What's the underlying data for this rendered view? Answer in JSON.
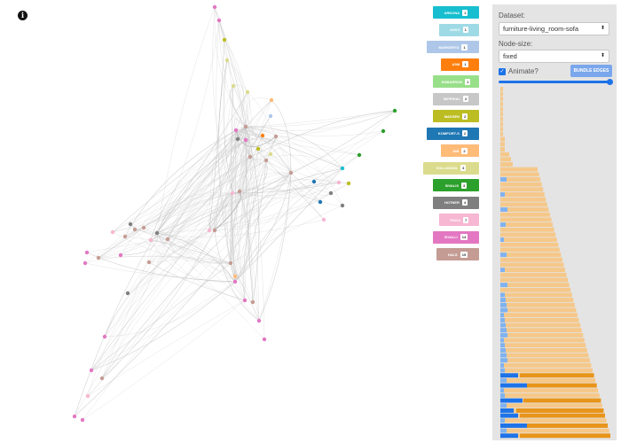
{
  "info_icon": "info-icon",
  "legend": [
    {
      "label": "ARKONA",
      "count": "1",
      "color": "#17becf"
    },
    {
      "label": "ASKO",
      "count": "1",
      "color": "#9edae5"
    },
    {
      "label": "MARKERYD",
      "count": "1",
      "color": "#aec7e8"
    },
    {
      "label": "ASM",
      "count": "1",
      "color": "#ff7f0e"
    },
    {
      "label": "EMBARRON",
      "count": "1",
      "color": "#98df8a"
    },
    {
      "label": "IMPERIAL",
      "count": "2",
      "color": "#c7c7c7"
    },
    {
      "label": "MADSEN",
      "count": "2",
      "color": "#bcbd22"
    },
    {
      "label": "KOMFORT-S",
      "count": "2",
      "color": "#1f77b4"
    },
    {
      "label": "NIB",
      "count": "2",
      "color": "#ffbb78"
    },
    {
      "label": "SOLLANDSL",
      "count": "3",
      "color": "#dbdb8d"
    },
    {
      "label": "SIVALIX",
      "count": "3",
      "color": "#2ca02c"
    },
    {
      "label": "HOTNER",
      "count": "4",
      "color": "#7f7f7f"
    },
    {
      "label": "TIKKA",
      "count": "7",
      "color": "#f7b6d2"
    },
    {
      "label": "SIVALLI",
      "count": "14",
      "color": "#e377c2"
    },
    {
      "label": "HALS",
      "count": "15",
      "color": "#c49c94"
    }
  ],
  "controls": {
    "dataset_label": "Dataset:",
    "dataset_value": "furniture-living_room-sofa",
    "node_size_label": "Node-size:",
    "node_size_value": "fixed",
    "animate_label": "Animate?",
    "animate_checked": true,
    "bundle_label": "BUNDLE EDGES",
    "slider_value": 1.0
  },
  "colors": {
    "accent": "#1e73e8",
    "bar_light": "#f5c88a",
    "bar_dark": "#e8941a",
    "bar_blue_light": "#7fb2f0",
    "bar_blue": "#1e73e8"
  }
}
